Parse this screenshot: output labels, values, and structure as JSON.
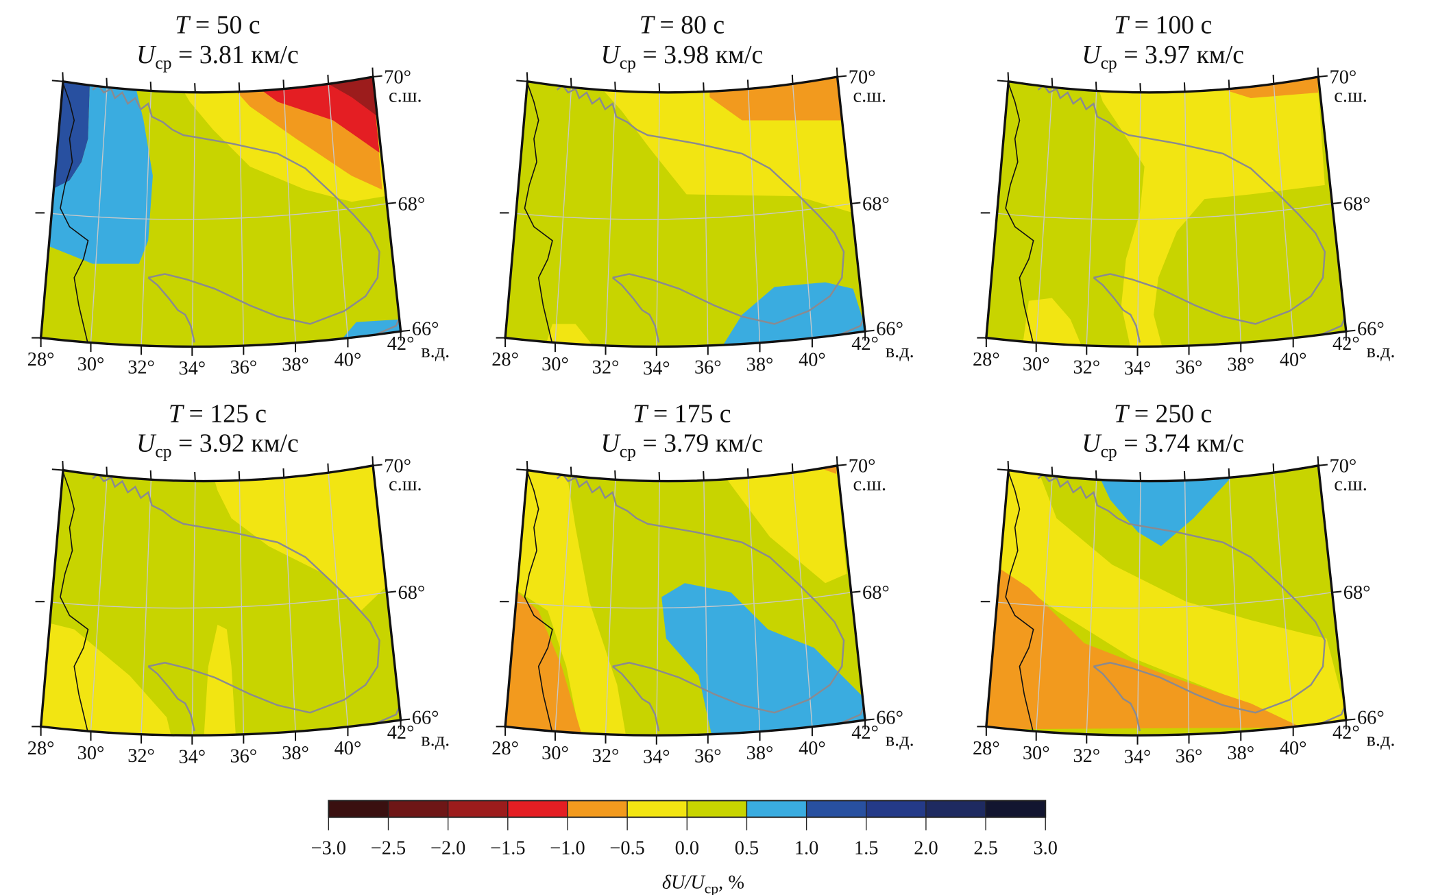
{
  "chart_data": {
    "type": "heatmap",
    "panels": [
      {
        "period_label": "T",
        "period_value": "= 50 с",
        "velocity_label": "U",
        "velocity_sub": "ср",
        "velocity_value": "= 3.81 км/с"
      },
      {
        "period_label": "T",
        "period_value": "= 80 с",
        "velocity_label": "U",
        "velocity_sub": "ср",
        "velocity_value": "= 3.98 км/с"
      },
      {
        "period_label": "T",
        "period_value": "= 100 с",
        "velocity_label": "U",
        "velocity_sub": "ср",
        "velocity_value": "= 3.97 км/с"
      },
      {
        "period_label": "T",
        "period_value": "= 125 с",
        "velocity_label": "U",
        "velocity_sub": "ср",
        "velocity_value": "= 3.92 км/с"
      },
      {
        "period_label": "T",
        "period_value": "= 175 с",
        "velocity_label": "U",
        "velocity_sub": "ср",
        "velocity_value": "= 3.79 км/с"
      },
      {
        "period_label": "T",
        "period_value": "= 250 с",
        "velocity_label": "U",
        "velocity_sub": "ср",
        "velocity_value": "= 3.74 км/с"
      }
    ],
    "lon_ticks": [
      "28°",
      "30°",
      "32°",
      "34°",
      "36°",
      "38°",
      "40°",
      "42°"
    ],
    "lon_unit": "в.д.",
    "lat_ticks": [
      "70°",
      "68°",
      "66°"
    ],
    "lat_unit": "с.ш.",
    "lon_range": [
      28,
      42
    ],
    "lat_range": [
      66,
      70
    ],
    "grid": true,
    "colorbar": {
      "ticks": [
        "−3.0",
        "−2.5",
        "−2.0",
        "−1.5",
        "−1.0",
        "−0.5",
        "0.0",
        "0.5",
        "1.0",
        "1.5",
        "2.0",
        "2.5",
        "3.0"
      ],
      "colors": [
        "#3a1010",
        "#6e1616",
        "#9c1c1c",
        "#e41e23",
        "#f29a1e",
        "#f2e512",
        "#c8d400",
        "#3aace0",
        "#2850a0",
        "#243a88",
        "#1e2a60",
        "#121530"
      ],
      "label_main": "δU/U",
      "label_sub": "ср",
      "label_tail": ", %",
      "placement": "bottom"
    },
    "line_colors": {
      "coast": "#8a8a90",
      "border": "#111111",
      "grid": "#c8c8c8"
    }
  }
}
